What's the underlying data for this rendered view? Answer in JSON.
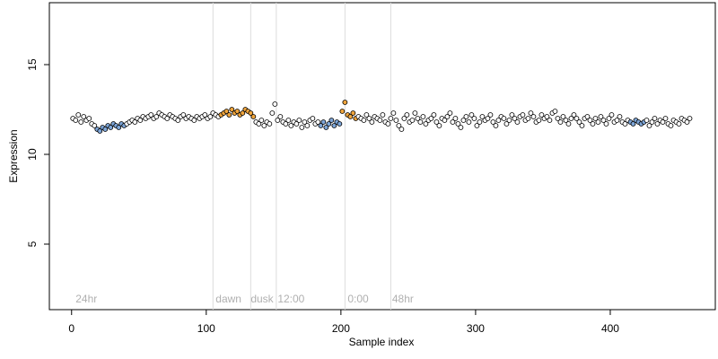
{
  "chart_data": {
    "type": "scatter",
    "x_label": "Sample index",
    "y_label": "Expression",
    "xlim": [
      -16.5,
      478
    ],
    "ylim": [
      1.35,
      18.45
    ],
    "xticks": [
      0,
      100,
      200,
      300,
      400
    ],
    "yticks": [
      5,
      10,
      15
    ],
    "vlines": [
      105,
      133,
      152,
      203,
      237
    ],
    "annotations": [
      {
        "text": "24hr",
        "x": 3
      },
      {
        "text": "dawn",
        "x": 107
      },
      {
        "text": "dusk",
        "x": 133
      },
      {
        "text": "12:00",
        "x": 153
      },
      {
        "text": "0:00",
        "x": 205
      },
      {
        "text": "48hr",
        "x": 238
      }
    ],
    "series": [
      {
        "color": "#ffffff",
        "x": [
          1,
          3,
          5,
          7,
          9,
          11,
          13,
          15,
          17
        ],
        "values": [
          12.0,
          11.9,
          12.2,
          11.8,
          12.1,
          11.9,
          12.0,
          11.7,
          11.6
        ]
      },
      {
        "color": "#7ea6d8",
        "x": [
          19,
          21,
          23,
          25,
          27,
          29,
          31,
          33,
          35,
          37,
          39
        ],
        "values": [
          11.4,
          11.3,
          11.5,
          11.4,
          11.6,
          11.5,
          11.7,
          11.6,
          11.5,
          11.7,
          11.6
        ]
      },
      {
        "color": "#ffffff",
        "x": [
          41,
          43,
          45,
          47,
          49,
          51,
          53,
          55,
          57,
          59,
          61,
          63,
          65,
          67,
          69,
          71,
          73,
          75,
          77,
          79,
          81,
          83,
          85,
          87,
          89,
          91,
          93,
          95,
          97,
          99,
          101,
          103,
          105,
          107,
          109
        ],
        "values": [
          11.7,
          11.8,
          11.9,
          11.8,
          12.0,
          11.9,
          12.1,
          12.0,
          12.1,
          12.2,
          12.0,
          12.1,
          12.3,
          12.2,
          12.1,
          12.0,
          12.2,
          12.1,
          12.0,
          11.9,
          12.1,
          12.2,
          12.0,
          12.1,
          12.0,
          11.9,
          12.1,
          12.0,
          12.1,
          12.2,
          12.0,
          12.1,
          12.3,
          12.2,
          12.1
        ]
      },
      {
        "color": "#f0a53c",
        "x": [
          111,
          113,
          115,
          117,
          119,
          121,
          123,
          125,
          127,
          129,
          131,
          133,
          135
        ],
        "values": [
          12.2,
          12.3,
          12.4,
          12.2,
          12.5,
          12.3,
          12.4,
          12.2,
          12.3,
          12.5,
          12.4,
          12.3,
          12.1
        ]
      },
      {
        "color": "#ffffff",
        "x": [
          137,
          139,
          141,
          143,
          145,
          147,
          149,
          151,
          153,
          155,
          157,
          159,
          161,
          163,
          165,
          167,
          169,
          171,
          173,
          175,
          177,
          179,
          181,
          183
        ],
        "values": [
          11.8,
          11.7,
          11.9,
          11.6,
          11.8,
          11.7,
          12.3,
          12.8,
          11.9,
          12.1,
          11.8,
          11.7,
          11.9,
          11.6,
          11.8,
          11.7,
          11.9,
          11.5,
          11.8,
          11.6,
          11.9,
          12.0,
          11.7,
          11.8
        ]
      },
      {
        "color": "#7ea6d8",
        "x": [
          185,
          187,
          189,
          191,
          193,
          195,
          197,
          199
        ],
        "values": [
          11.6,
          11.8,
          11.5,
          11.7,
          11.9,
          11.6,
          11.8,
          11.7
        ]
      },
      {
        "color": "#f0a53c",
        "x": [
          201,
          203,
          205,
          207,
          209,
          211
        ],
        "values": [
          12.4,
          12.9,
          12.2,
          12.1,
          12.3,
          12.0
        ]
      },
      {
        "color": "#ffffff",
        "x": [
          213,
          215,
          217,
          219,
          221,
          223,
          225,
          227,
          229,
          231,
          233,
          235,
          237,
          239,
          241,
          243,
          245,
          247,
          249,
          251,
          253,
          255,
          257,
          259,
          261,
          263,
          265,
          267,
          269,
          271,
          273,
          275,
          277,
          279,
          281,
          283,
          285,
          287,
          289,
          291,
          293,
          295,
          297,
          299,
          301,
          303,
          305,
          307,
          309,
          311,
          313,
          315,
          317,
          319,
          321,
          323,
          325,
          327,
          329,
          331,
          333,
          335,
          337,
          339,
          341,
          343,
          345,
          347,
          349,
          351,
          353,
          355,
          357,
          359,
          361,
          363,
          365,
          367,
          369,
          371,
          373,
          375,
          377,
          379,
          381,
          383,
          385,
          387,
          389,
          391,
          393,
          395,
          397,
          399,
          401,
          403,
          405,
          407,
          409,
          411,
          413
        ],
        "values": [
          12.1,
          12.0,
          11.9,
          12.2,
          12.0,
          11.8,
          12.1,
          12.0,
          11.9,
          12.2,
          11.8,
          11.7,
          12.0,
          12.3,
          11.9,
          11.6,
          11.4,
          12.0,
          12.2,
          11.8,
          11.9,
          12.3,
          12.0,
          11.8,
          12.1,
          11.7,
          11.9,
          12.0,
          12.2,
          11.8,
          11.6,
          12.0,
          11.9,
          12.1,
          12.3,
          11.8,
          12.0,
          11.7,
          11.5,
          11.9,
          12.1,
          11.8,
          12.2,
          12.0,
          11.6,
          11.8,
          12.1,
          11.9,
          12.0,
          12.2,
          11.8,
          11.6,
          11.9,
          12.1,
          12.0,
          11.7,
          11.9,
          12.2,
          12.0,
          11.8,
          12.1,
          12.2,
          11.9,
          12.0,
          12.3,
          12.1,
          11.8,
          11.9,
          12.2,
          12.0,
          12.1,
          11.9,
          12.3,
          12.4,
          12.0,
          11.8,
          12.1,
          11.9,
          11.7,
          12.0,
          12.2,
          12.0,
          11.8,
          11.6,
          12.0,
          12.1,
          11.9,
          11.7,
          12.0,
          11.8,
          12.1,
          11.9,
          11.7,
          12.0,
          12.2,
          11.8,
          11.9,
          12.1,
          11.8,
          11.7,
          11.9
        ]
      },
      {
        "color": "#7ea6d8",
        "x": [
          415,
          417,
          419,
          421,
          423,
          425
        ],
        "values": [
          11.8,
          11.7,
          11.9,
          11.8,
          11.7,
          11.8
        ]
      },
      {
        "color": "#ffffff",
        "x": [
          427,
          429,
          431,
          433,
          435,
          437,
          439,
          441,
          443,
          445,
          447,
          449,
          451,
          453,
          455,
          457,
          459
        ],
        "values": [
          11.9,
          11.6,
          11.8,
          12.0,
          11.7,
          11.9,
          11.8,
          12.0,
          11.7,
          11.6,
          11.9,
          11.8,
          11.7,
          12.0,
          11.9,
          11.8,
          12.0
        ]
      }
    ]
  }
}
